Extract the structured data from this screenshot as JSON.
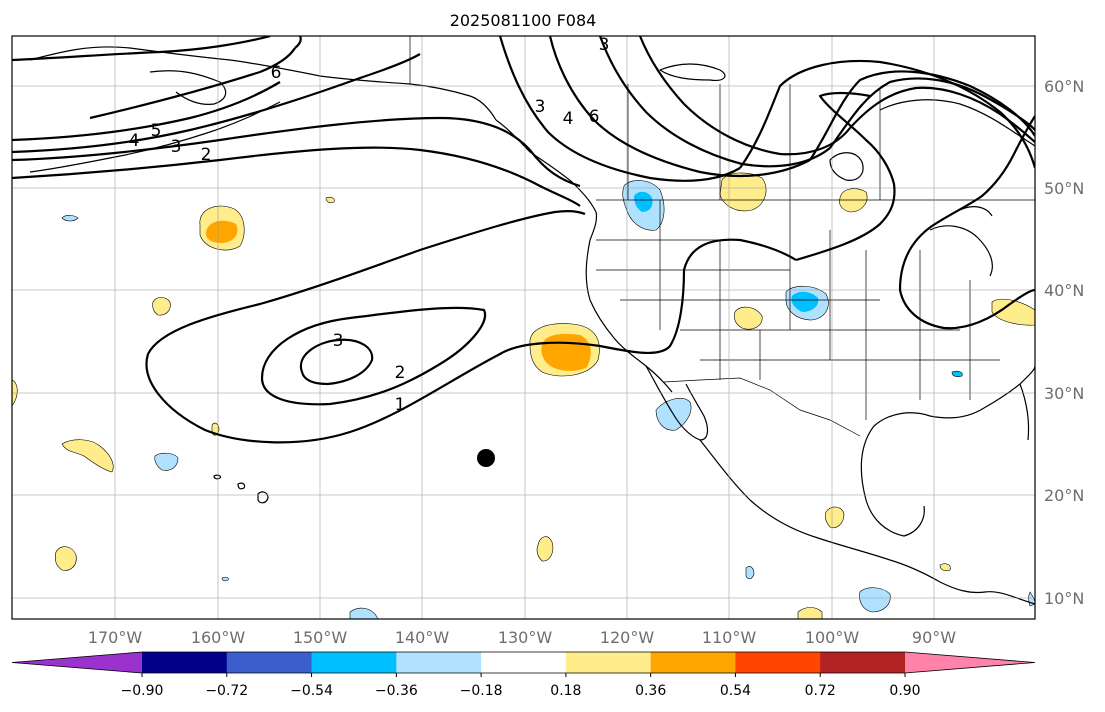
{
  "title": "2025081100 F084",
  "lon_ticks": [
    "170°W",
    "160°W",
    "150°W",
    "140°W",
    "130°W",
    "120°W",
    "110°W",
    "100°W",
    "90°W"
  ],
  "lat_ticks": [
    "10°N",
    "20°N",
    "30°N",
    "40°N",
    "50°N",
    "60°N"
  ],
  "colorbar": {
    "ticks": [
      "−0.90",
      "−0.72",
      "−0.54",
      "−0.36",
      "−0.18",
      "0.18",
      "0.36",
      "0.54",
      "0.72",
      "0.90"
    ],
    "colors": [
      "#9a32cd",
      "#00008b",
      "#3a5fcd",
      "#00bfff",
      "#b0e2ff",
      "#ffffff",
      "#ffec8b",
      "#ffa500",
      "#ff4500",
      "#b22222",
      "#ff82ab"
    ]
  },
  "contour_labels": [
    "3",
    "2",
    "1",
    "6",
    "5",
    "4",
    "3",
    "2",
    "3",
    "4",
    "6"
  ]
}
